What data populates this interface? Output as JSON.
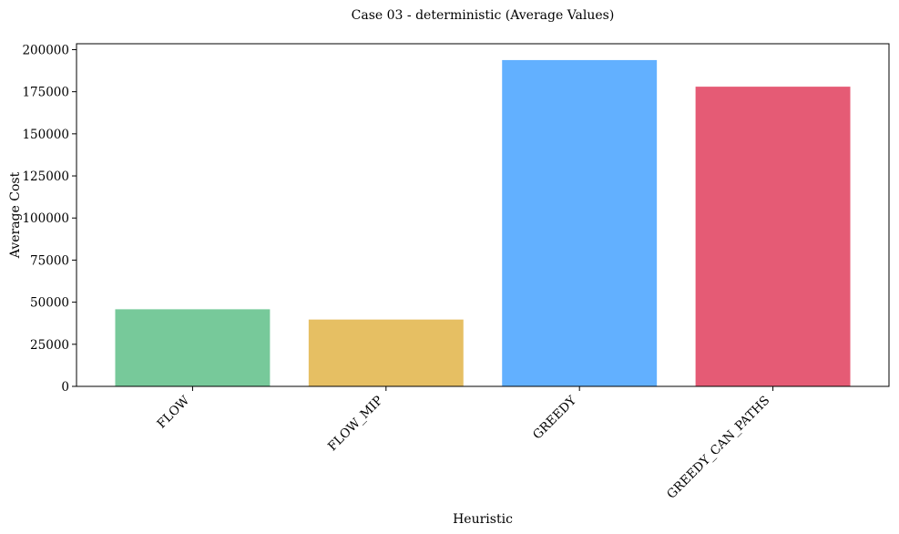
{
  "chart_data": {
    "type": "bar",
    "title": "Case 03 - deterministic (Average Values)",
    "xlabel": "Heuristic",
    "ylabel": "Average Cost",
    "categories": [
      "FLOW",
      "FLOW_MIP",
      "GREEDY",
      "GREEDY_CAN_PATHS"
    ],
    "values": [
      45800,
      39700,
      193800,
      178000
    ],
    "colors": [
      "#77c99a",
      "#e6bf63",
      "#62b0ff",
      "#e55b75"
    ],
    "ylim": [
      0,
      203500
    ],
    "yticks": [
      0,
      25000,
      50000,
      75000,
      100000,
      125000,
      150000,
      175000,
      200000
    ],
    "grid": false,
    "legend": "none"
  }
}
